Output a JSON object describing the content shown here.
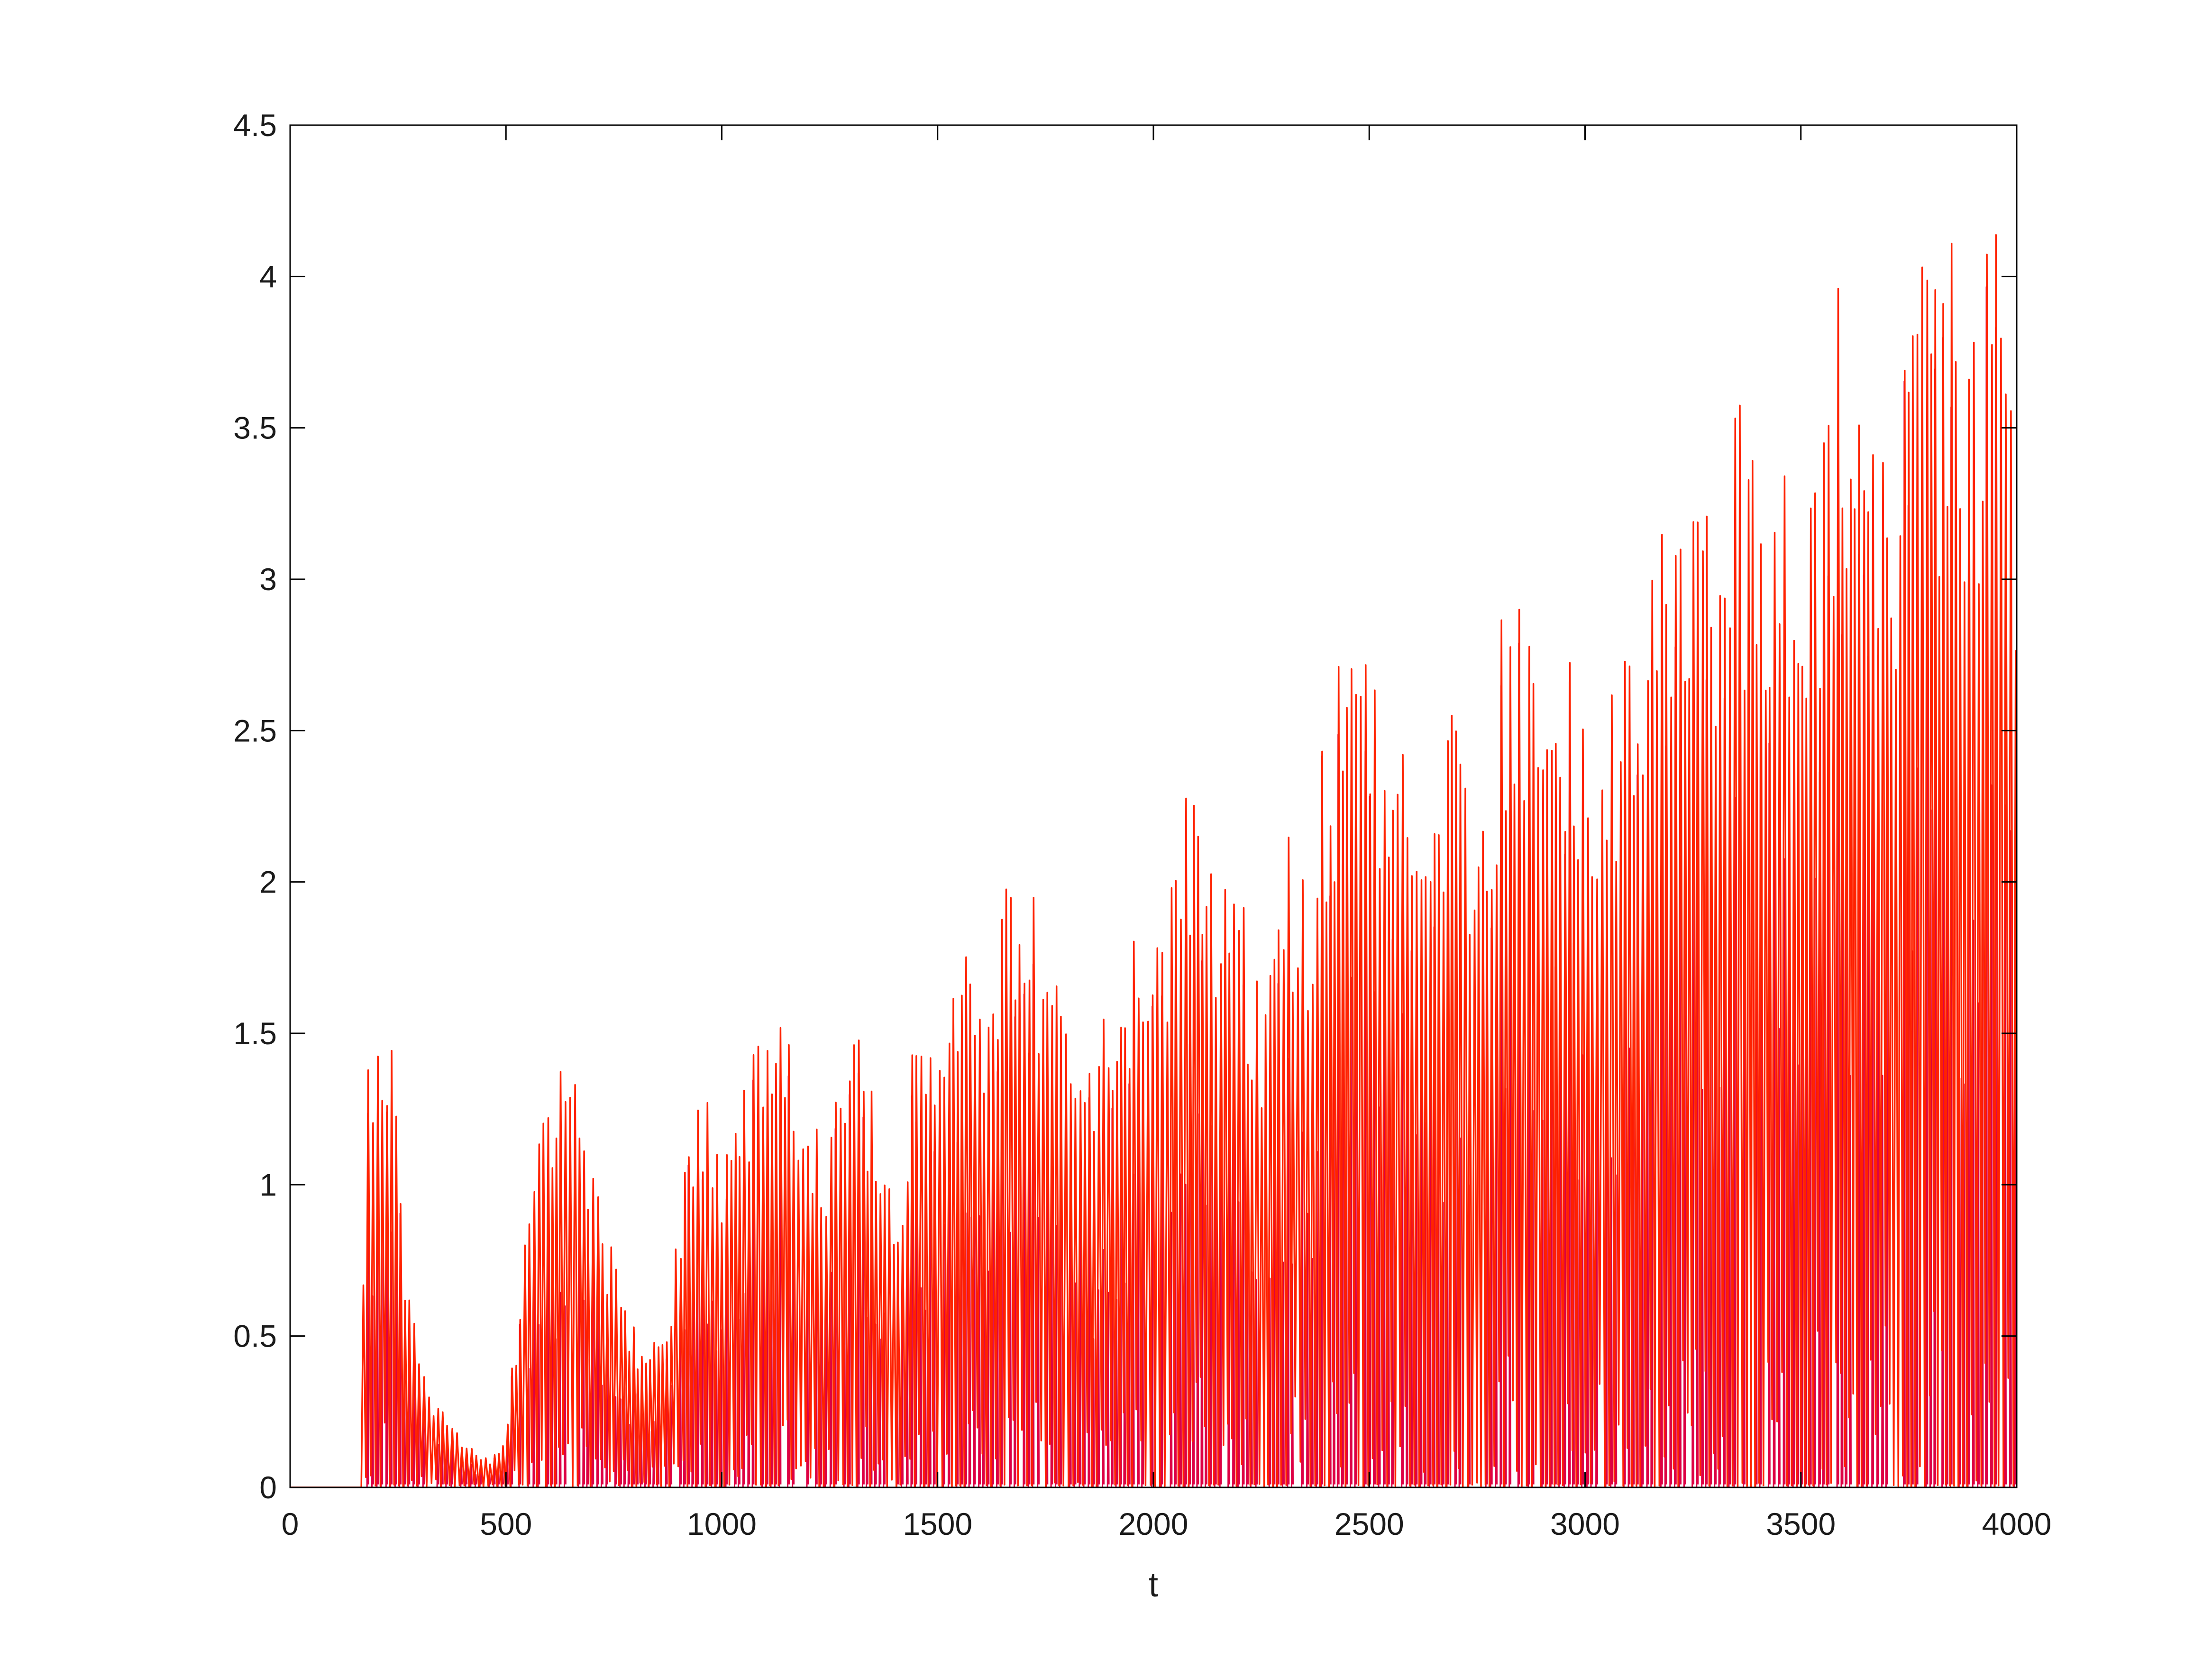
{
  "chart_data": {
    "type": "line",
    "title": "",
    "xlabel": "t",
    "ylabel": "",
    "xlim": [
      0,
      4000
    ],
    "ylim": [
      0,
      4.5
    ],
    "xticks": [
      0,
      500,
      1000,
      1500,
      2000,
      2500,
      3000,
      3500,
      4000
    ],
    "yticks": [
      0,
      0.5,
      1,
      1.5,
      2,
      2.5,
      3,
      3.5,
      4,
      4.5
    ],
    "xtick_labels": [
      "0",
      "500",
      "1000",
      "1500",
      "2000",
      "2500",
      "3000",
      "3500",
      "4000"
    ],
    "ytick_labels": [
      "0",
      "0.5",
      "1",
      "1.5",
      "2",
      "2.5",
      "3",
      "3.5",
      "4",
      "4.5"
    ],
    "grid": false,
    "legend": "none",
    "colors": {
      "series_main": "#ff2200",
      "series_secondary": "#dd0044"
    },
    "series": [
      {
        "color": "#ff2200",
        "style": "dense oscillation",
        "envelope_x": [
          0,
          160,
          180,
          200,
          230,
          260,
          290,
          320,
          360,
          400,
          440,
          470,
          500,
          520,
          560,
          600,
          640,
          680,
          720,
          760,
          800,
          840,
          880,
          900,
          950,
          1000,
          1050,
          1100,
          1150,
          1200,
          1250,
          1300,
          1330,
          1360,
          1400,
          1450,
          1500,
          1550,
          1600,
          1650,
          1700,
          1750,
          1800,
          1850,
          1900,
          1950,
          2000,
          2050,
          2100,
          2150,
          2200,
          2250,
          2300,
          2350,
          2400,
          2450,
          2500,
          2550,
          2600,
          2650,
          2700,
          2750,
          2800,
          2850,
          2880,
          2900,
          2950,
          3000,
          3050,
          3100,
          3150,
          3200,
          3250,
          3300,
          3350,
          3400,
          3450,
          3500,
          3550,
          3600,
          3630,
          3650,
          3700,
          3750,
          3800,
          3850,
          3900,
          3950,
          4000
        ],
        "envelope_y": [
          0,
          0,
          1.52,
          1.45,
          1.68,
          0.92,
          0.58,
          0.33,
          0.25,
          0.17,
          0.11,
          0.1,
          0.16,
          0.5,
          1.0,
          1.35,
          1.52,
          1.3,
          0.9,
          0.75,
          0.52,
          0.48,
          0.58,
          0.95,
          1.42,
          1.2,
          1.38,
          1.58,
          1.5,
          1.3,
          1.2,
          1.66,
          1.5,
          1.3,
          0.9,
          1.62,
          1.72,
          1.8,
          1.75,
          1.96,
          2.06,
          1.85,
          1.55,
          1.45,
          1.65,
          1.78,
          2.2,
          2.0,
          2.6,
          2.2,
          2.02,
          1.72,
          2.26,
          2.0,
          2.56,
          2.82,
          2.92,
          2.6,
          2.52,
          2.4,
          2.65,
          2.28,
          2.9,
          2.94,
          3.38,
          3.14,
          2.8,
          2.72,
          2.6,
          3.11,
          3.0,
          3.56,
          3.3,
          3.34,
          3.66,
          3.5,
          3.48,
          3.42,
          3.56,
          4.12,
          3.9,
          3.7,
          3.6,
          3.95,
          4.08,
          4.19,
          4.0,
          4.18,
          3.75
        ]
      }
    ]
  }
}
